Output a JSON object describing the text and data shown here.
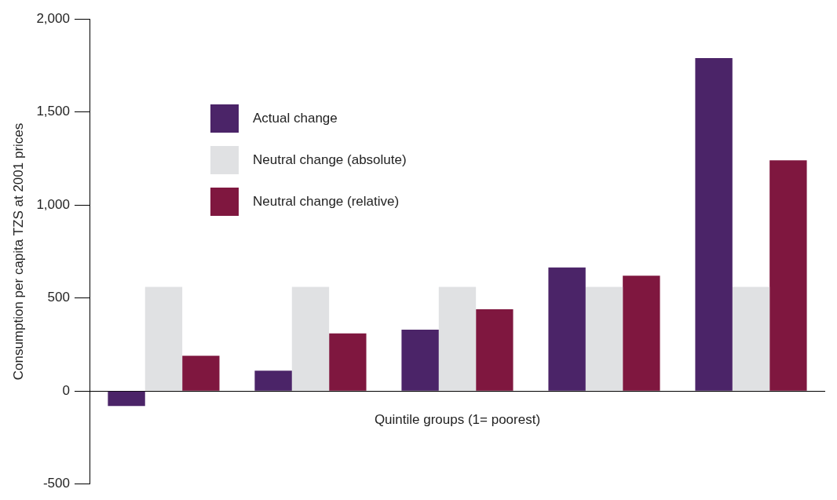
{
  "chart_data": {
    "type": "bar",
    "xlabel": "Quintile groups (1= poorest)",
    "ylabel": "Consumption per capita TZS at 2001 prices",
    "categories": [
      null,
      null,
      null,
      null,
      null
    ],
    "series": [
      {
        "name": "Actual change",
        "color": "#4b2468",
        "values": [
          -80,
          110,
          330,
          665,
          1790
        ]
      },
      {
        "name": "Neutral change (absolute)",
        "color": "#e0e1e3",
        "values": [
          560,
          560,
          560,
          560,
          560
        ]
      },
      {
        "name": "Neutral change (relative)",
        "color": "#7f173f",
        "values": [
          190,
          310,
          440,
          620,
          1240
        ]
      }
    ],
    "ylim": [
      -500,
      2000
    ],
    "yticks": [
      {
        "value": -500,
        "label": "-500"
      },
      {
        "value": 0,
        "label": "0"
      },
      {
        "value": 500,
        "label": "500"
      },
      {
        "value": 1000,
        "label": "1,000"
      },
      {
        "value": 1500,
        "label": "1,500"
      },
      {
        "value": 2000,
        "label": "2,000"
      }
    ],
    "legend": "top left"
  }
}
